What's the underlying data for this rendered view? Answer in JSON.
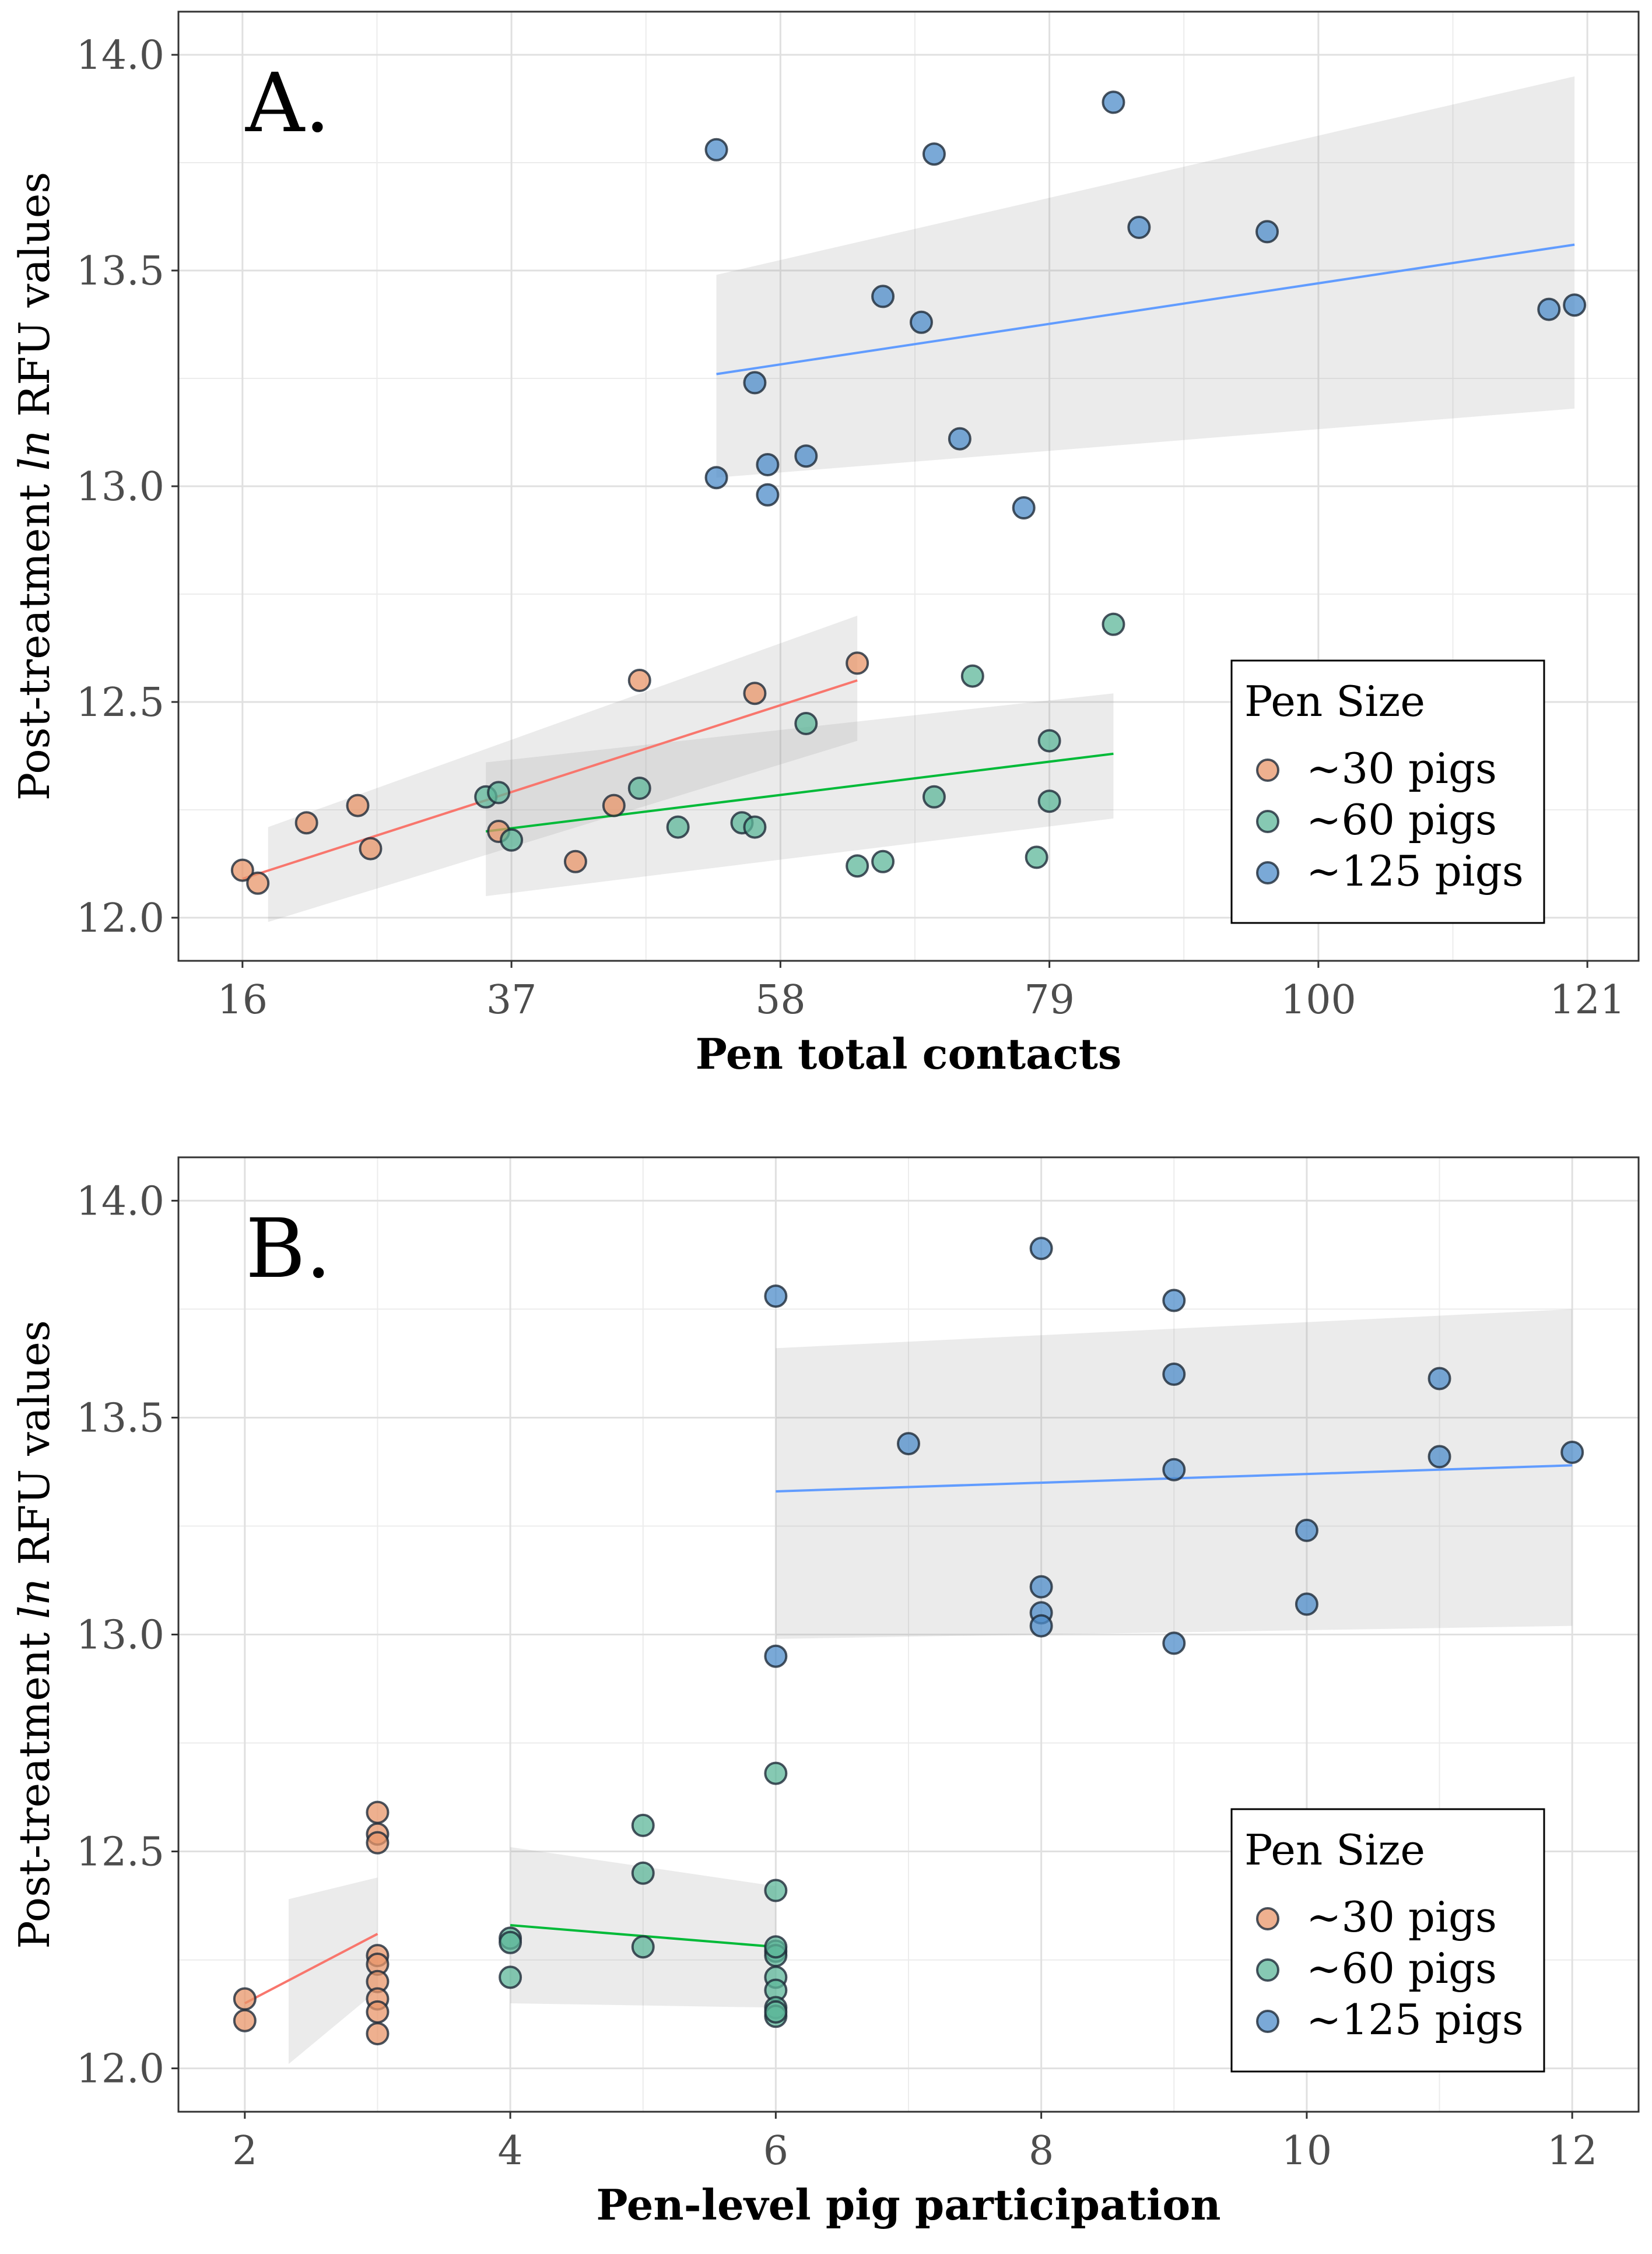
{
  "chart_data": [
    {
      "type": "scatter",
      "panel_label": "A.",
      "xlabel": "Pen total contacts",
      "ylabel_parts": [
        "Post-treatment ",
        "ln",
        " RFU values"
      ],
      "xlim": [
        11,
        125
      ],
      "ylim": [
        11.9,
        14.1
      ],
      "xticks": [
        16,
        37,
        58,
        79,
        100,
        121
      ],
      "yticks": [
        "12.0",
        "12.5",
        "13.0",
        "13.5",
        "14.0"
      ],
      "grid": true,
      "legend": {
        "title": "Pen Size",
        "position": "bottom-right",
        "entries": [
          "~30 pigs",
          "~60 pigs",
          "~125 pigs"
        ]
      },
      "series": [
        {
          "name": "~30 pigs",
          "color": "#E8966A",
          "line_color": "#F8766D",
          "points": [
            [
              16,
              12.11
            ],
            [
              17.2,
              12.08
            ],
            [
              21,
              12.22
            ],
            [
              25,
              12.26
            ],
            [
              26,
              12.16
            ],
            [
              36,
              12.2
            ],
            [
              42,
              12.13
            ],
            [
              45,
              12.26
            ],
            [
              47,
              12.55
            ],
            [
              56,
              12.52
            ],
            [
              64,
              12.59
            ]
          ],
          "fit": [
            [
              16,
              12.09
            ],
            [
              64,
              12.55
            ]
          ],
          "band": [
            [
              18,
              12.21,
              11.99
            ],
            [
              64,
              12.7,
              12.41
            ]
          ]
        },
        {
          "name": "~60 pigs",
          "color": "#5DB79A",
          "line_color": "#00BA38",
          "points": [
            [
              35,
              12.28
            ],
            [
              36,
              12.29
            ],
            [
              37,
              12.18
            ],
            [
              47,
              12.3
            ],
            [
              50,
              12.21
            ],
            [
              55,
              12.22
            ],
            [
              56,
              12.21
            ],
            [
              60,
              12.45
            ],
            [
              64,
              12.12
            ],
            [
              66,
              12.13
            ],
            [
              70,
              12.28
            ],
            [
              73,
              12.56
            ],
            [
              78,
              12.14
            ],
            [
              79,
              12.41
            ],
            [
              79,
              12.27
            ],
            [
              84,
              12.68
            ]
          ],
          "fit": [
            [
              35,
              12.2
            ],
            [
              84,
              12.38
            ]
          ],
          "band": [
            [
              35,
              12.36,
              12.05
            ],
            [
              84,
              12.52,
              12.23
            ]
          ]
        },
        {
          "name": "~125 pigs",
          "color": "#4E8CC9",
          "line_color": "#619CFF",
          "points": [
            [
              53,
              13.78
            ],
            [
              53,
              13.02
            ],
            [
              56,
              13.24
            ],
            [
              57,
              13.05
            ],
            [
              57,
              12.98
            ],
            [
              60,
              13.07
            ],
            [
              66,
              13.44
            ],
            [
              69,
              13.38
            ],
            [
              70,
              13.77
            ],
            [
              72,
              13.11
            ],
            [
              77,
              12.95
            ],
            [
              84,
              13.89
            ],
            [
              86,
              13.6
            ],
            [
              96,
              13.59
            ],
            [
              118,
              13.41
            ],
            [
              120,
              13.42
            ]
          ],
          "fit": [
            [
              53,
              13.26
            ],
            [
              120,
              13.56
            ]
          ],
          "band": [
            [
              53,
              13.49,
              13.02
            ],
            [
              120,
              13.95,
              13.18
            ]
          ]
        }
      ]
    },
    {
      "type": "scatter",
      "panel_label": "B.",
      "xlabel": "Pen-level pig participation",
      "ylabel_parts": [
        "Post-treatment ",
        "ln",
        " RFU values"
      ],
      "xlim": [
        1.5,
        12.5
      ],
      "ylim": [
        11.9,
        14.1
      ],
      "xticks": [
        2,
        4,
        6,
        8,
        10,
        12
      ],
      "yticks": [
        "12.0",
        "12.5",
        "13.0",
        "13.5",
        "14.0"
      ],
      "grid": true,
      "legend": {
        "title": "Pen Size",
        "position": "bottom-right",
        "entries": [
          "~30 pigs",
          "~60 pigs",
          "~125 pigs"
        ]
      },
      "series": [
        {
          "name": "~30 pigs",
          "color": "#E8966A",
          "line_color": "#F8766D",
          "points": [
            [
              2,
              12.16
            ],
            [
              2,
              12.11
            ],
            [
              3,
              12.59
            ],
            [
              3,
              12.54
            ],
            [
              3,
              12.52
            ],
            [
              3,
              12.26
            ],
            [
              3,
              12.24
            ],
            [
              3,
              12.2
            ],
            [
              3,
              12.16
            ],
            [
              3,
              12.13
            ],
            [
              3,
              12.08
            ]
          ],
          "fit": [
            [
              2,
              12.15
            ],
            [
              3,
              12.31
            ]
          ],
          "band": [
            [
              2.33,
              12.39,
              12.01
            ],
            [
              3,
              12.44,
              12.18
            ]
          ]
        },
        {
          "name": "~60 pigs",
          "color": "#5DB79A",
          "line_color": "#00BA38",
          "points": [
            [
              4,
              12.3
            ],
            [
              4,
              12.29
            ],
            [
              4,
              12.21
            ],
            [
              5,
              12.56
            ],
            [
              5,
              12.45
            ],
            [
              5,
              12.28
            ],
            [
              6,
              12.68
            ],
            [
              6,
              12.41
            ],
            [
              6,
              12.27
            ],
            [
              6,
              12.26
            ],
            [
              6,
              12.21
            ],
            [
              6,
              12.18
            ],
            [
              6,
              12.14
            ],
            [
              6,
              12.12
            ],
            [
              6,
              12.13
            ],
            [
              6,
              12.28
            ]
          ],
          "fit": [
            [
              4,
              12.33
            ],
            [
              6,
              12.28
            ]
          ],
          "band": [
            [
              4,
              12.51,
              12.15
            ],
            [
              6,
              12.42,
              12.14
            ]
          ]
        },
        {
          "name": "~125 pigs",
          "color": "#4E8CC9",
          "line_color": "#619CFF",
          "points": [
            [
              6,
              13.78
            ],
            [
              6,
              12.95
            ],
            [
              7,
              13.44
            ],
            [
              8,
              13.89
            ],
            [
              8,
              13.11
            ],
            [
              8,
              13.05
            ],
            [
              8,
              13.02
            ],
            [
              9,
              13.77
            ],
            [
              9,
              13.6
            ],
            [
              9,
              13.38
            ],
            [
              9,
              12.98
            ],
            [
              10,
              13.24
            ],
            [
              10,
              13.07
            ],
            [
              11,
              13.59
            ],
            [
              11,
              13.41
            ],
            [
              12,
              13.42
            ]
          ],
          "fit": [
            [
              6,
              13.33
            ],
            [
              12,
              13.39
            ]
          ],
          "band": [
            [
              6,
              13.66,
              12.99
            ],
            [
              12,
              13.75,
              13.02
            ]
          ]
        }
      ]
    }
  ]
}
